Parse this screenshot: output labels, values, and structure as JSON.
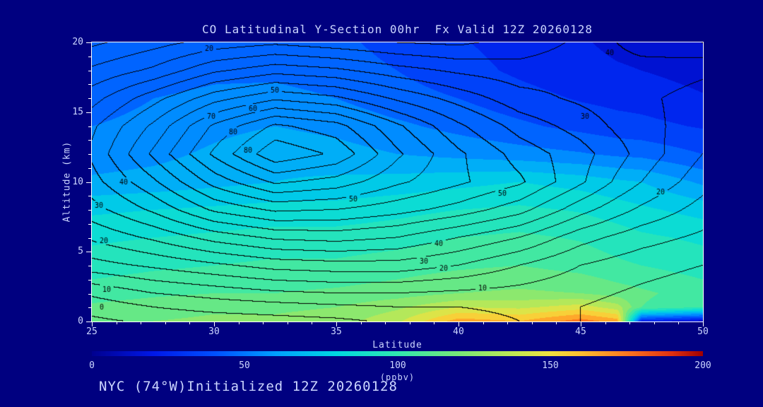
{
  "title": "CO Latitudinal Y-Section 00hr  Fx Valid 12Z 20260128",
  "footer": "NYC (74°W)Initialized 12Z 20260128",
  "axes": {
    "x_label": "Latitude",
    "y_label": "Altitude (km)",
    "x_range": [
      25,
      50
    ],
    "y_range": [
      0,
      20
    ],
    "x_ticks": [
      25,
      30,
      35,
      40,
      45,
      50
    ],
    "y_ticks": [
      0,
      5,
      10,
      15,
      20
    ],
    "x_minor_step": 1,
    "y_minor_step": 1
  },
  "colorbar": {
    "label": "(ppbv)",
    "min": 0,
    "max": 200,
    "ticks": [
      0,
      50,
      100,
      150,
      200
    ]
  },
  "colors": {
    "background": "#000080",
    "text": "#ccd6ff",
    "frame": "#ffffff",
    "contour_line": "#000000"
  },
  "colormap": [
    [
      0,
      "#000090"
    ],
    [
      20,
      "#0018e8"
    ],
    [
      40,
      "#0050ff"
    ],
    [
      60,
      "#00a0ff"
    ],
    [
      80,
      "#00d8e0"
    ],
    [
      100,
      "#30e8b0"
    ],
    [
      120,
      "#78e878"
    ],
    [
      140,
      "#c8e850"
    ],
    [
      150,
      "#f0e040"
    ],
    [
      160,
      "#ffc030"
    ],
    [
      175,
      "#ff7820"
    ],
    [
      190,
      "#e03010"
    ],
    [
      200,
      "#a00000"
    ]
  ],
  "chart_data": {
    "type": "heatmap",
    "title": "CO Latitudinal Y-Section 00hr  Fx Valid 12Z 20260128",
    "xlabel": "Latitude",
    "ylabel": "Altitude (km)",
    "units": "ppbv",
    "xlim": [
      25,
      50
    ],
    "ylim": [
      0,
      20
    ],
    "fill_band_width": 10,
    "contour_interval": 5,
    "lats": [
      25,
      27.5,
      30,
      32.5,
      35,
      37.5,
      40,
      42.5,
      45,
      46.5,
      47.5,
      50
    ],
    "alts": [
      0,
      1,
      2,
      4,
      6,
      8,
      10,
      12,
      14,
      16,
      18,
      20
    ],
    "fill_ppbv": [
      [
        118,
        120,
        122,
        122,
        125,
        138,
        165,
        160,
        175,
        165,
        25,
        15
      ],
      [
        112,
        115,
        118,
        118,
        120,
        128,
        140,
        138,
        145,
        135,
        110,
        100
      ],
      [
        105,
        108,
        110,
        110,
        112,
        115,
        120,
        122,
        120,
        115,
        112,
        105
      ],
      [
        95,
        98,
        100,
        102,
        102,
        105,
        108,
        110,
        106,
        102,
        100,
        95
      ],
      [
        88,
        90,
        92,
        94,
        94,
        96,
        100,
        102,
        99,
        95,
        92,
        88
      ],
      [
        78,
        80,
        82,
        84,
        84,
        87,
        90,
        92,
        89,
        85,
        82,
        76
      ],
      [
        62,
        64,
        67,
        70,
        72,
        74,
        77,
        80,
        76,
        72,
        70,
        58
      ],
      [
        54,
        57,
        62,
        67,
        64,
        60,
        57,
        54,
        51,
        48,
        47,
        40
      ],
      [
        50,
        52,
        57,
        60,
        57,
        52,
        47,
        42,
        37,
        34,
        33,
        29
      ],
      [
        47,
        50,
        52,
        54,
        50,
        44,
        40,
        34,
        29,
        27,
        26,
        21
      ],
      [
        45,
        46,
        48,
        47,
        44,
        40,
        34,
        28,
        23,
        21,
        20,
        16
      ],
      [
        44,
        45,
        45,
        44,
        42,
        37,
        31,
        26,
        21,
        18,
        17,
        13
      ]
    ],
    "contour_values": [
      [
        -1,
        1,
        2,
        3,
        4,
        6,
        8,
        10,
        10,
        9,
        8,
        5
      ],
      [
        2,
        5,
        7,
        8,
        9,
        10,
        10,
        11,
        10,
        9,
        8,
        6
      ],
      [
        6,
        10,
        12,
        14,
        15,
        15,
        14,
        13,
        11,
        10,
        9,
        7
      ],
      [
        18,
        21,
        24,
        27,
        28,
        28,
        25,
        20,
        15,
        13,
        12,
        10
      ],
      [
        26,
        31,
        37,
        41,
        42,
        40,
        35,
        30,
        22,
        19,
        17,
        14
      ],
      [
        33,
        41,
        51,
        56,
        55,
        52,
        48,
        42,
        32,
        27,
        24,
        18
      ],
      [
        38,
        49,
        62,
        71,
        68,
        61,
        56,
        51,
        41,
        34,
        30,
        22
      ],
      [
        41,
        56,
        71,
        84,
        79,
        66,
        56,
        48,
        42,
        37,
        33,
        25
      ],
      [
        39,
        51,
        66,
        76,
        72,
        61,
        51,
        43,
        38,
        34,
        32,
        27
      ],
      [
        33,
        43,
        53,
        59,
        56,
        49,
        43,
        37,
        34,
        32,
        31,
        28
      ],
      [
        26,
        31,
        39,
        43,
        41,
        37,
        34,
        32,
        33,
        33,
        33,
        31
      ],
      [
        19,
        23,
        27,
        29,
        27,
        25,
        24,
        27,
        31,
        35,
        37,
        40
      ]
    ],
    "contour_labels": [
      {
        "text": "0",
        "lat": 25.4,
        "alt": 1.0
      },
      {
        "text": "10",
        "lat": 25.6,
        "alt": 2.3
      },
      {
        "text": "20",
        "lat": 25.5,
        "alt": 5.8
      },
      {
        "text": "30",
        "lat": 25.3,
        "alt": 8.3
      },
      {
        "text": "40",
        "lat": 26.3,
        "alt": 10.0
      },
      {
        "text": "20",
        "lat": 29.8,
        "alt": 19.6
      },
      {
        "text": "50",
        "lat": 32.5,
        "alt": 16.6
      },
      {
        "text": "60",
        "lat": 31.6,
        "alt": 15.3
      },
      {
        "text": "70",
        "lat": 29.9,
        "alt": 14.7
      },
      {
        "text": "80",
        "lat": 30.8,
        "alt": 13.6
      },
      {
        "text": "80",
        "lat": 31.4,
        "alt": 12.3
      },
      {
        "text": "50",
        "lat": 35.7,
        "alt": 8.8
      },
      {
        "text": "50",
        "lat": 41.8,
        "alt": 9.2
      },
      {
        "text": "40",
        "lat": 39.2,
        "alt": 5.6
      },
      {
        "text": "30",
        "lat": 38.6,
        "alt": 4.3
      },
      {
        "text": "20",
        "lat": 39.4,
        "alt": 3.8
      },
      {
        "text": "10",
        "lat": 41.0,
        "alt": 2.4
      },
      {
        "text": "40",
        "lat": 46.2,
        "alt": 19.3
      },
      {
        "text": "30",
        "lat": 45.2,
        "alt": 14.7
      },
      {
        "text": "20",
        "lat": 48.3,
        "alt": 9.3
      }
    ]
  }
}
